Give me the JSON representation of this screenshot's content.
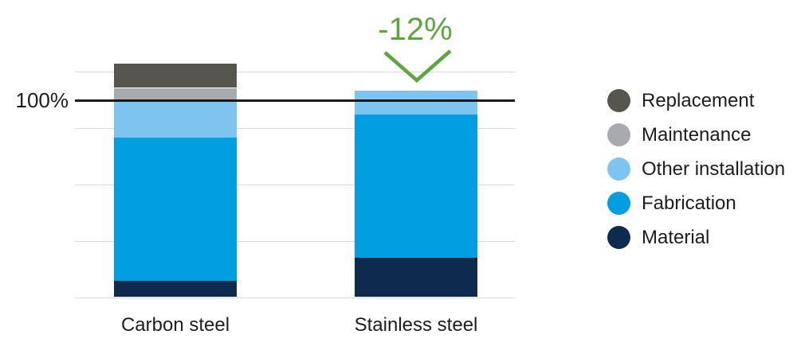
{
  "chart_data": {
    "type": "bar",
    "stacked": true,
    "title": "",
    "unit": "%",
    "categories": [
      "Carbon steel",
      "Stainless steel"
    ],
    "series": [
      {
        "name": "Material",
        "color": "#0e2a4d",
        "values": [
          8,
          20
        ]
      },
      {
        "name": "Fabrication",
        "color": "#019ee2",
        "values": [
          73,
          73
        ]
      },
      {
        "name": "Other installation",
        "color": "#7dc5f0",
        "values": [
          19,
          12
        ]
      },
      {
        "name": "Maintenance",
        "color": "#a8aaad",
        "values": [
          6.5,
          0
        ]
      },
      {
        "name": "Replacement",
        "color": "#56554e",
        "values": [
          12.5,
          0
        ]
      }
    ],
    "totals": [
      119,
      105
    ],
    "reference_line": {
      "value": 100,
      "label": "100%"
    },
    "annotation": {
      "text": "-12%",
      "target_category": "Stainless steel",
      "color": "#5ba63f"
    },
    "grid": true,
    "legend_position": "right",
    "legend_order_top_to_bottom": [
      "Replacement",
      "Maintenance",
      "Other installation",
      "Fabrication",
      "Material"
    ],
    "ylim": [
      0,
      125
    ]
  },
  "colors": {
    "background": "#ffffff",
    "text": "#1d1d1b",
    "gridline": "#d9d9d9",
    "reference_line": "#1a1a1a",
    "accent_green": "#5ba63f"
  }
}
